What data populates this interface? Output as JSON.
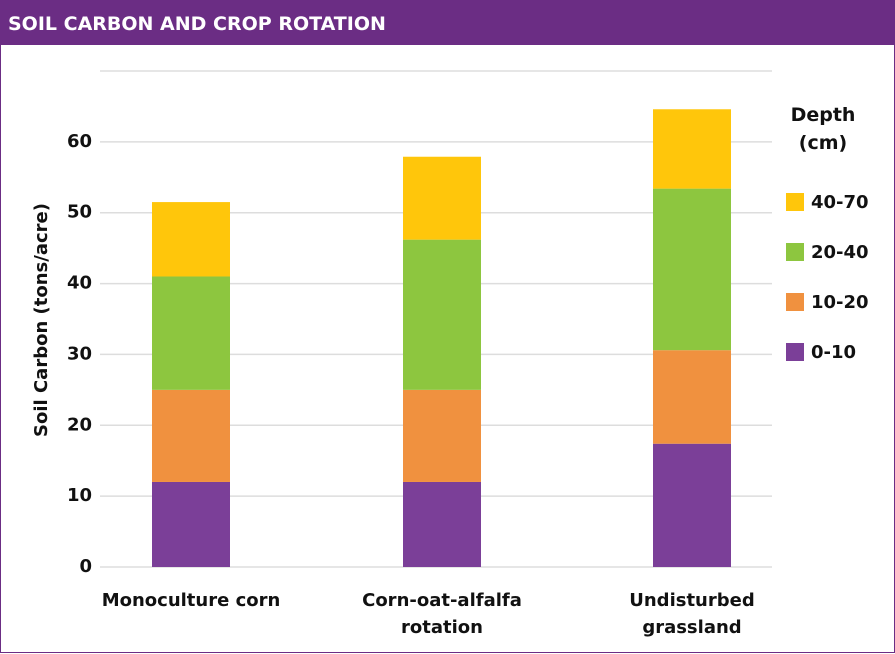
{
  "chart_data": {
    "type": "stacked_bar",
    "title": "SOIL CARBON AND CROP ROTATION",
    "y_label": "Soil Carbon (tons/acre)",
    "legend_title": "Depth (cm)",
    "categories": [
      "Monoculture corn",
      "Corn-oat-alfalfa rotation",
      "Undisturbed grassland"
    ],
    "series": [
      {
        "name": "0-10",
        "color": "#7b3f98",
        "values": [
          12,
          12,
          17.4
        ]
      },
      {
        "name": "10-20",
        "color": "#f0913f",
        "values": [
          13,
          13,
          13.2
        ]
      },
      {
        "name": "20-40",
        "color": "#8dc63f",
        "values": [
          16,
          21.2,
          22.8
        ]
      },
      {
        "name": "40-70",
        "color": "#ffc60b",
        "values": [
          10.5,
          11.7,
          11.2
        ]
      }
    ],
    "ylim": [
      0,
      70
    ],
    "yticks": [
      0,
      10,
      20,
      30,
      40,
      50,
      60
    ],
    "grid": true,
    "legend": "right"
  }
}
